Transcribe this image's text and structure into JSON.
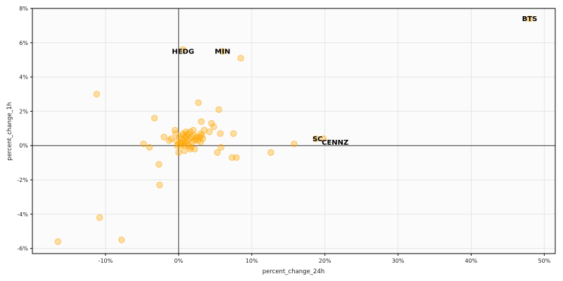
{
  "chart_data": {
    "type": "scatter",
    "title": "",
    "xlabel": "percent_change_24h",
    "ylabel": "percent_change_1h",
    "xlim": [
      -20,
      51.5
    ],
    "ylim": [
      -6.3,
      8.0
    ],
    "x_ticks": [
      -10,
      0,
      10,
      20,
      30,
      40,
      50
    ],
    "x_tick_labels": [
      "-10%",
      "0%",
      "10%",
      "20%",
      "30%",
      "40%",
      "50%"
    ],
    "y_ticks": [
      -6,
      -4,
      -2,
      0,
      2,
      4,
      6,
      8
    ],
    "y_tick_labels": [
      "-6%",
      "-4%",
      "-2%",
      "0%",
      "2%",
      "4%",
      "6%",
      "8%"
    ],
    "grid": true,
    "zero_lines": true,
    "marker_color": "#FFA500",
    "marker_opacity": 0.35,
    "background_color": "#fbfbfb",
    "grid_color": "#e6e6e6",
    "annotations": [
      {
        "label": "BTS",
        "x": 48.0,
        "y": 7.4
      },
      {
        "label": "HEDG",
        "x": 0.6,
        "y": 5.5
      },
      {
        "label": "MIN",
        "x": 6.0,
        "y": 5.5
      },
      {
        "label": "SC",
        "x": 19.0,
        "y": 0.4
      },
      {
        "label": "CENNZ",
        "x": 21.4,
        "y": 0.2
      }
    ],
    "points": [
      {
        "x": 48.0,
        "y": 7.4
      },
      {
        "x": 0.6,
        "y": 5.6
      },
      {
        "x": 6.0,
        "y": 5.5
      },
      {
        "x": 8.5,
        "y": 5.1
      },
      {
        "x": -11.2,
        "y": 3.0
      },
      {
        "x": 2.7,
        "y": 2.5
      },
      {
        "x": 5.5,
        "y": 2.1
      },
      {
        "x": -3.3,
        "y": 1.6
      },
      {
        "x": 3.1,
        "y": 1.4
      },
      {
        "x": 4.5,
        "y": 1.3
      },
      {
        "x": 4.8,
        "y": 1.1
      },
      {
        "x": 3.5,
        "y": 0.9
      },
      {
        "x": 4.2,
        "y": 0.8
      },
      {
        "x": 7.5,
        "y": 0.7
      },
      {
        "x": 5.7,
        "y": 0.7
      },
      {
        "x": 3.0,
        "y": 0.7
      },
      {
        "x": -0.5,
        "y": 0.9
      },
      {
        "x": -0.4,
        "y": 0.7
      },
      {
        "x": -2.0,
        "y": 0.5
      },
      {
        "x": -1.0,
        "y": 0.4
      },
      {
        "x": -1.3,
        "y": 0.3
      },
      {
        "x": -4.8,
        "y": 0.1
      },
      {
        "x": -4.0,
        "y": -0.1
      },
      {
        "x": 18.8,
        "y": 0.4
      },
      {
        "x": 19.8,
        "y": 0.4
      },
      {
        "x": 15.8,
        "y": 0.1
      },
      {
        "x": 12.6,
        "y": -0.4
      },
      {
        "x": 7.3,
        "y": -0.7
      },
      {
        "x": 7.9,
        "y": -0.7
      },
      {
        "x": 5.3,
        "y": -0.4
      },
      {
        "x": 5.8,
        "y": -0.1
      },
      {
        "x": 0.0,
        "y": -0.4
      },
      {
        "x": 0.8,
        "y": -0.3
      },
      {
        "x": 1.6,
        "y": -0.2
      },
      {
        "x": 2.2,
        "y": -0.2
      },
      {
        "x": 0.2,
        "y": 0.0
      },
      {
        "x": 0.5,
        "y": 0.1
      },
      {
        "x": 0.9,
        "y": 0.2
      },
      {
        "x": 1.2,
        "y": 0.3
      },
      {
        "x": 1.5,
        "y": 0.4
      },
      {
        "x": 1.8,
        "y": 0.5
      },
      {
        "x": 2.1,
        "y": 0.6
      },
      {
        "x": 0.4,
        "y": 0.4
      },
      {
        "x": 0.7,
        "y": 0.6
      },
      {
        "x": 1.0,
        "y": 0.5
      },
      {
        "x": 1.3,
        "y": 0.7
      },
      {
        "x": 1.6,
        "y": 0.8
      },
      {
        "x": 2.4,
        "y": 0.4
      },
      {
        "x": 2.7,
        "y": 0.3
      },
      {
        "x": 3.0,
        "y": 0.2
      },
      {
        "x": 3.3,
        "y": 0.4
      },
      {
        "x": 0.3,
        "y": 0.2
      },
      {
        "x": 0.6,
        "y": 0.3
      },
      {
        "x": 1.1,
        "y": 0.1
      },
      {
        "x": 1.4,
        "y": 0.0
      },
      {
        "x": 1.9,
        "y": 0.2
      },
      {
        "x": 2.2,
        "y": 0.3
      },
      {
        "x": 2.5,
        "y": 0.5
      },
      {
        "x": 0.8,
        "y": 0.0
      },
      {
        "x": 1.7,
        "y": -0.1
      },
      {
        "x": -0.3,
        "y": 0.3
      },
      {
        "x": 0.1,
        "y": 0.5
      },
      {
        "x": 2.9,
        "y": 0.5
      },
      {
        "x": 3.2,
        "y": 0.6
      },
      {
        "x": 1.0,
        "y": 0.8
      },
      {
        "x": 0.0,
        "y": 0.1
      },
      {
        "x": -0.2,
        "y": 0.0
      },
      {
        "x": 2.0,
        "y": 0.9
      },
      {
        "x": 0.6,
        "y": 0.7
      },
      {
        "x": 1.2,
        "y": 0.6
      },
      {
        "x": -2.7,
        "y": -1.1
      },
      {
        "x": -2.6,
        "y": -2.3
      },
      {
        "x": -10.8,
        "y": -4.2
      },
      {
        "x": -7.8,
        "y": -5.5
      },
      {
        "x": -16.5,
        "y": -5.6
      }
    ]
  }
}
